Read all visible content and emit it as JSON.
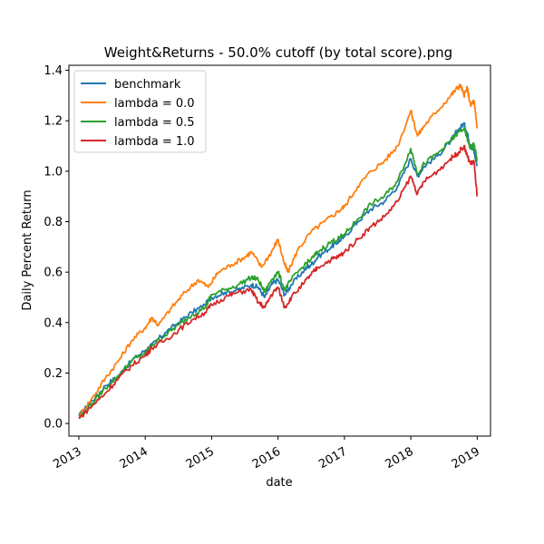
{
  "chart_data": {
    "type": "line",
    "title": "Weight&Returns - 50.0% cutoff (by total score).png",
    "xlabel": "date",
    "ylabel": "Daily Percent Return",
    "xlim": [
      2012.85,
      2019.2
    ],
    "ylim": [
      -0.05,
      1.42
    ],
    "x_ticks": [
      2013,
      2014,
      2015,
      2016,
      2017,
      2018,
      2019
    ],
    "x_tick_labels": [
      "2013",
      "2014",
      "2015",
      "2016",
      "2017",
      "2018",
      "2019"
    ],
    "y_ticks": [
      0.0,
      0.2,
      0.4,
      0.6,
      0.8,
      1.0,
      1.2,
      1.4
    ],
    "y_tick_labels": [
      "0.0",
      "0.2",
      "0.4",
      "0.6",
      "0.8",
      "1.0",
      "1.2",
      "1.4"
    ],
    "grid": false,
    "legend_position": "top-left",
    "series": [
      {
        "name": "benchmark",
        "color": "#1f77b4",
        "points": [
          [
            2013.0,
            0.03
          ],
          [
            2013.2,
            0.09
          ],
          [
            2013.4,
            0.15
          ],
          [
            2013.6,
            0.19
          ],
          [
            2013.8,
            0.25
          ],
          [
            2014.0,
            0.29
          ],
          [
            2014.1,
            0.31
          ],
          [
            2014.3,
            0.36
          ],
          [
            2014.5,
            0.4
          ],
          [
            2014.7,
            0.44
          ],
          [
            2014.9,
            0.47
          ],
          [
            2015.0,
            0.5
          ],
          [
            2015.2,
            0.52
          ],
          [
            2015.4,
            0.53
          ],
          [
            2015.6,
            0.55
          ],
          [
            2015.7,
            0.54
          ],
          [
            2015.8,
            0.5
          ],
          [
            2015.9,
            0.55
          ],
          [
            2016.0,
            0.57
          ],
          [
            2016.1,
            0.51
          ],
          [
            2016.2,
            0.55
          ],
          [
            2016.4,
            0.61
          ],
          [
            2016.5,
            0.63
          ],
          [
            2016.6,
            0.66
          ],
          [
            2016.8,
            0.7
          ],
          [
            2016.9,
            0.72
          ],
          [
            2017.0,
            0.74
          ],
          [
            2017.2,
            0.8
          ],
          [
            2017.4,
            0.85
          ],
          [
            2017.6,
            0.88
          ],
          [
            2017.8,
            0.94
          ],
          [
            2018.0,
            1.05
          ],
          [
            2018.1,
            0.98
          ],
          [
            2018.2,
            1.02
          ],
          [
            2018.4,
            1.06
          ],
          [
            2018.6,
            1.12
          ],
          [
            2018.7,
            1.16
          ],
          [
            2018.8,
            1.19
          ],
          [
            2018.85,
            1.15
          ],
          [
            2018.9,
            1.1
          ],
          [
            2018.95,
            1.08
          ],
          [
            2019.0,
            1.02
          ]
        ]
      },
      {
        "name": "lambda = 0.0",
        "color": "#ff7f0e",
        "points": [
          [
            2013.0,
            0.03
          ],
          [
            2013.2,
            0.1
          ],
          [
            2013.4,
            0.18
          ],
          [
            2013.6,
            0.25
          ],
          [
            2013.8,
            0.33
          ],
          [
            2014.0,
            0.38
          ],
          [
            2014.1,
            0.42
          ],
          [
            2014.2,
            0.39
          ],
          [
            2014.4,
            0.46
          ],
          [
            2014.6,
            0.52
          ],
          [
            2014.8,
            0.57
          ],
          [
            2014.95,
            0.54
          ],
          [
            2015.1,
            0.6
          ],
          [
            2015.3,
            0.63
          ],
          [
            2015.5,
            0.66
          ],
          [
            2015.6,
            0.68
          ],
          [
            2015.75,
            0.62
          ],
          [
            2015.9,
            0.68
          ],
          [
            2016.0,
            0.73
          ],
          [
            2016.1,
            0.63
          ],
          [
            2016.15,
            0.6
          ],
          [
            2016.3,
            0.69
          ],
          [
            2016.5,
            0.76
          ],
          [
            2016.7,
            0.8
          ],
          [
            2016.9,
            0.84
          ],
          [
            2017.0,
            0.86
          ],
          [
            2017.2,
            0.94
          ],
          [
            2017.4,
            1.0
          ],
          [
            2017.6,
            1.04
          ],
          [
            2017.8,
            1.1
          ],
          [
            2018.0,
            1.24
          ],
          [
            2018.1,
            1.14
          ],
          [
            2018.2,
            1.18
          ],
          [
            2018.4,
            1.24
          ],
          [
            2018.6,
            1.3
          ],
          [
            2018.7,
            1.33
          ],
          [
            2018.75,
            1.34
          ],
          [
            2018.8,
            1.3
          ],
          [
            2018.85,
            1.33
          ],
          [
            2018.9,
            1.26
          ],
          [
            2018.95,
            1.28
          ],
          [
            2019.0,
            1.17
          ]
        ]
      },
      {
        "name": "lambda = 0.5",
        "color": "#2ca02c",
        "points": [
          [
            2013.0,
            0.02
          ],
          [
            2013.2,
            0.08
          ],
          [
            2013.4,
            0.14
          ],
          [
            2013.6,
            0.19
          ],
          [
            2013.8,
            0.25
          ],
          [
            2014.0,
            0.28
          ],
          [
            2014.1,
            0.31
          ],
          [
            2014.3,
            0.35
          ],
          [
            2014.5,
            0.39
          ],
          [
            2014.7,
            0.43
          ],
          [
            2014.9,
            0.46
          ],
          [
            2015.0,
            0.51
          ],
          [
            2015.2,
            0.53
          ],
          [
            2015.4,
            0.55
          ],
          [
            2015.6,
            0.58
          ],
          [
            2015.7,
            0.57
          ],
          [
            2015.8,
            0.52
          ],
          [
            2015.9,
            0.57
          ],
          [
            2016.0,
            0.6
          ],
          [
            2016.1,
            0.53
          ],
          [
            2016.2,
            0.57
          ],
          [
            2016.4,
            0.63
          ],
          [
            2016.5,
            0.65
          ],
          [
            2016.6,
            0.68
          ],
          [
            2016.8,
            0.72
          ],
          [
            2016.9,
            0.73
          ],
          [
            2017.0,
            0.75
          ],
          [
            2017.2,
            0.81
          ],
          [
            2017.4,
            0.87
          ],
          [
            2017.6,
            0.9
          ],
          [
            2017.8,
            0.96
          ],
          [
            2018.0,
            1.09
          ],
          [
            2018.1,
            0.99
          ],
          [
            2018.2,
            1.03
          ],
          [
            2018.4,
            1.07
          ],
          [
            2018.6,
            1.12
          ],
          [
            2018.7,
            1.15
          ],
          [
            2018.8,
            1.17
          ],
          [
            2018.85,
            1.13
          ],
          [
            2018.9,
            1.09
          ],
          [
            2018.95,
            1.11
          ],
          [
            2019.0,
            1.04
          ]
        ]
      },
      {
        "name": "lambda = 1.0",
        "color": "#d62728",
        "points": [
          [
            2013.0,
            0.02
          ],
          [
            2013.2,
            0.07
          ],
          [
            2013.4,
            0.12
          ],
          [
            2013.6,
            0.18
          ],
          [
            2013.8,
            0.23
          ],
          [
            2014.0,
            0.27
          ],
          [
            2014.1,
            0.3
          ],
          [
            2014.3,
            0.33
          ],
          [
            2014.5,
            0.37
          ],
          [
            2014.7,
            0.41
          ],
          [
            2014.9,
            0.44
          ],
          [
            2015.0,
            0.47
          ],
          [
            2015.2,
            0.5
          ],
          [
            2015.4,
            0.52
          ],
          [
            2015.6,
            0.53
          ],
          [
            2015.7,
            0.48
          ],
          [
            2015.8,
            0.46
          ],
          [
            2015.9,
            0.51
          ],
          [
            2016.0,
            0.54
          ],
          [
            2016.1,
            0.46
          ],
          [
            2016.2,
            0.5
          ],
          [
            2016.4,
            0.56
          ],
          [
            2016.5,
            0.59
          ],
          [
            2016.6,
            0.62
          ],
          [
            2016.8,
            0.65
          ],
          [
            2016.9,
            0.66
          ],
          [
            2017.0,
            0.68
          ],
          [
            2017.2,
            0.73
          ],
          [
            2017.4,
            0.78
          ],
          [
            2017.6,
            0.82
          ],
          [
            2017.8,
            0.88
          ],
          [
            2018.0,
            0.98
          ],
          [
            2018.1,
            0.91
          ],
          [
            2018.2,
            0.96
          ],
          [
            2018.4,
            1.0
          ],
          [
            2018.6,
            1.05
          ],
          [
            2018.7,
            1.07
          ],
          [
            2018.8,
            1.1
          ],
          [
            2018.85,
            1.06
          ],
          [
            2018.9,
            1.03
          ],
          [
            2018.95,
            1.04
          ],
          [
            2019.0,
            0.9
          ]
        ]
      }
    ]
  }
}
